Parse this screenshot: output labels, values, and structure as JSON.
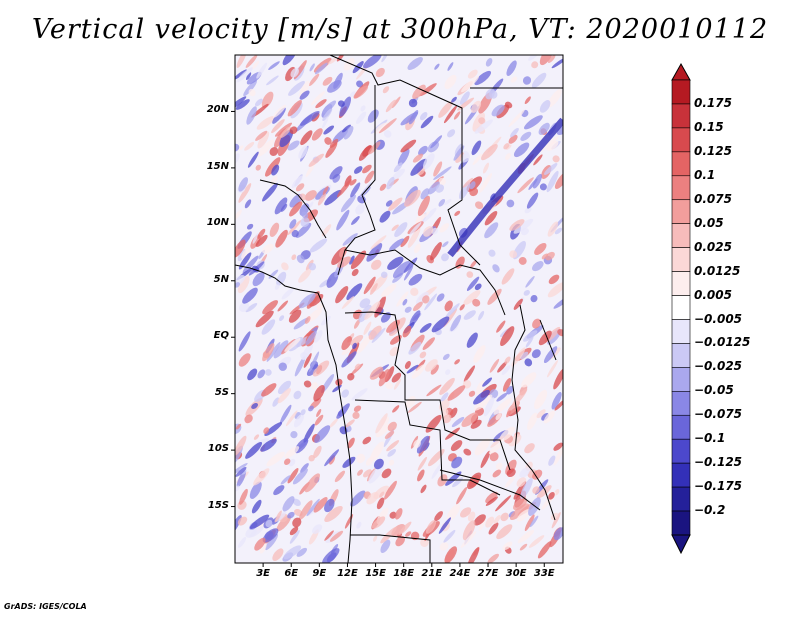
{
  "title": "Vertical velocity [m/s] at 300hPa, VT: 2020010112",
  "credit": "GrADS: IGES/COLA",
  "map": {
    "lat_labels": [
      "20N",
      "15N",
      "10N",
      "5N",
      "EQ",
      "5S",
      "10S",
      "15S"
    ],
    "lat_values": [
      20,
      15,
      10,
      5,
      0,
      -5,
      -10,
      -15
    ],
    "lon_labels": [
      "3E",
      "6E",
      "9E",
      "12E",
      "15E",
      "18E",
      "21E",
      "24E",
      "27E",
      "30E",
      "33E"
    ],
    "lon_values": [
      3,
      6,
      9,
      12,
      15,
      18,
      21,
      24,
      27,
      30,
      33
    ],
    "lon_range": [
      0,
      35
    ],
    "lat_range": [
      -20,
      25
    ]
  },
  "colorbar": {
    "labels": [
      "0.175",
      "0.15",
      "0.125",
      "0.1",
      "0.075",
      "0.05",
      "0.025",
      "0.0125",
      "0.005",
      "−0.005",
      "−0.0125",
      "−0.025",
      "−0.05",
      "−0.075",
      "−0.1",
      "−0.125",
      "−0.175",
      "−0.2"
    ],
    "colors": [
      "#b51a22",
      "#c8323a",
      "#d84a4e",
      "#e46464",
      "#ec8080",
      "#f29e9c",
      "#f7bcbb",
      "#fbd8d7",
      "#fdeeee",
      "#ffffff",
      "#e8e6fb",
      "#cbc9f5",
      "#aaa8ee",
      "#8a87e6",
      "#6a66da",
      "#4c48cc",
      "#3330b8",
      "#24209a",
      "#1a1480"
    ]
  }
}
